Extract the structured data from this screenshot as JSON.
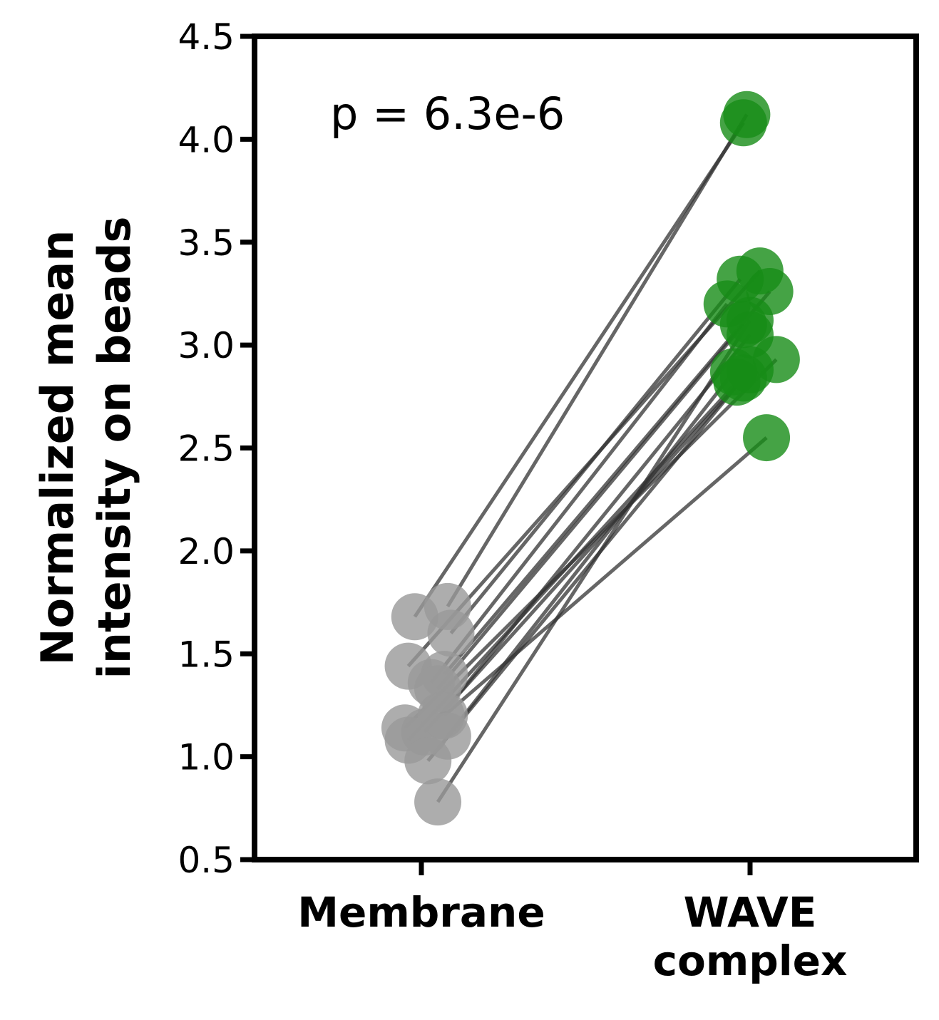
{
  "chart_data": {
    "type": "scatter",
    "title": "",
    "ylabel_lines": [
      "Normalized mean",
      "intensity on beads"
    ],
    "xlabel": "",
    "categories": [
      [
        "Membrane"
      ],
      [
        "WAVE",
        "complex"
      ]
    ],
    "ylim": [
      0.5,
      4.5
    ],
    "yticks": [
      0.5,
      1.0,
      1.5,
      2.0,
      2.5,
      3.0,
      3.5,
      4.0,
      4.5
    ],
    "ytick_labels": [
      "0.5",
      "1.0",
      "1.5",
      "2.0",
      "2.5",
      "3.0",
      "3.5",
      "4.0",
      "4.5"
    ],
    "grid": false,
    "annotation": "p = 6.3e-6",
    "colors": {
      "membrane": "#999999",
      "wave": "#178c17",
      "line": "#333333",
      "axis": "#000000"
    },
    "pairs": [
      {
        "membrane": 1.68,
        "wave": 4.08,
        "jm": -0.02,
        "jw": -0.02
      },
      {
        "membrane": 1.73,
        "wave": 4.12,
        "jm": 0.08,
        "jw": -0.01
      },
      {
        "membrane": 1.6,
        "wave": 3.32,
        "jm": 0.09,
        "jw": -0.03
      },
      {
        "membrane": 1.44,
        "wave": 3.36,
        "jm": -0.04,
        "jw": 0.03
      },
      {
        "membrane": 1.4,
        "wave": 3.26,
        "jm": 0.07,
        "jw": 0.06
      },
      {
        "membrane": 1.36,
        "wave": 3.2,
        "jm": 0.03,
        "jw": -0.07
      },
      {
        "membrane": 1.33,
        "wave": 3.1,
        "jm": 0.05,
        "jw": -0.02
      },
      {
        "membrane": 1.2,
        "wave": 3.05,
        "jm": 0.06,
        "jw": 0.0
      },
      {
        "membrane": 1.14,
        "wave": 2.93,
        "jm": -0.05,
        "jw": 0.08
      },
      {
        "membrane": 1.1,
        "wave": 2.87,
        "jm": 0.08,
        "jw": -0.05
      },
      {
        "membrane": 1.08,
        "wave": 2.82,
        "jm": -0.04,
        "jw": -0.04
      },
      {
        "membrane": 1.12,
        "wave": 2.84,
        "jm": 0.01,
        "jw": -0.02
      },
      {
        "membrane": 0.98,
        "wave": 2.88,
        "jm": 0.02,
        "jw": 0.0
      },
      {
        "membrane": 1.2,
        "wave": 2.55,
        "jm": 0.07,
        "jw": 0.05
      },
      {
        "membrane": 0.78,
        "wave": 3.12,
        "jm": 0.05,
        "jw": 0.0
      }
    ]
  }
}
